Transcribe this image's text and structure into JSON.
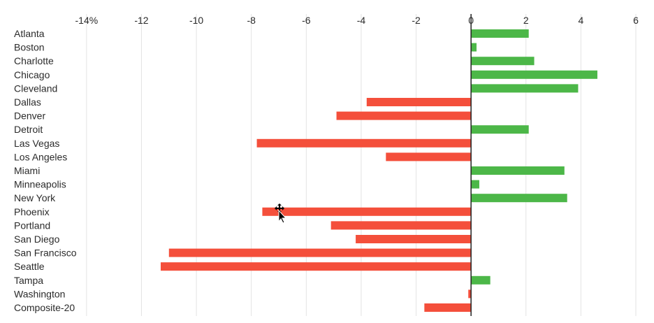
{
  "chart_data": {
    "type": "bar",
    "orientation": "horizontal",
    "x_tick_labels": [
      "-14%",
      "-12",
      "-10",
      "-8",
      "-6",
      "-4",
      "-2",
      "0",
      "2",
      "4",
      "6"
    ],
    "x_ticks": [
      -14,
      -12,
      -10,
      -8,
      -6,
      -4,
      -2,
      0,
      2,
      4,
      6
    ],
    "xlim": [
      -14.2,
      6
    ],
    "grid": true,
    "positive_color": "#4cb748",
    "negative_color": "#f44f3b",
    "categories": [
      "Atlanta",
      "Boston",
      "Charlotte",
      "Chicago",
      "Cleveland",
      "Dallas",
      "Denver",
      "Detroit",
      "Las Vegas",
      "Los Angeles",
      "Miami",
      "Minneapolis",
      "New York",
      "Phoenix",
      "Portland",
      "San Diego",
      "San Francisco",
      "Seattle",
      "Tampa",
      "Washington",
      "Composite-20"
    ],
    "values": [
      2.1,
      0.2,
      2.3,
      4.6,
      3.9,
      -3.8,
      -4.9,
      2.1,
      -7.8,
      -3.1,
      3.4,
      0.3,
      3.5,
      -7.6,
      -5.1,
      -4.2,
      -11.0,
      -11.3,
      0.7,
      -0.1,
      -1.7
    ]
  },
  "cursor": {
    "icon": "move-cursor-icon"
  }
}
